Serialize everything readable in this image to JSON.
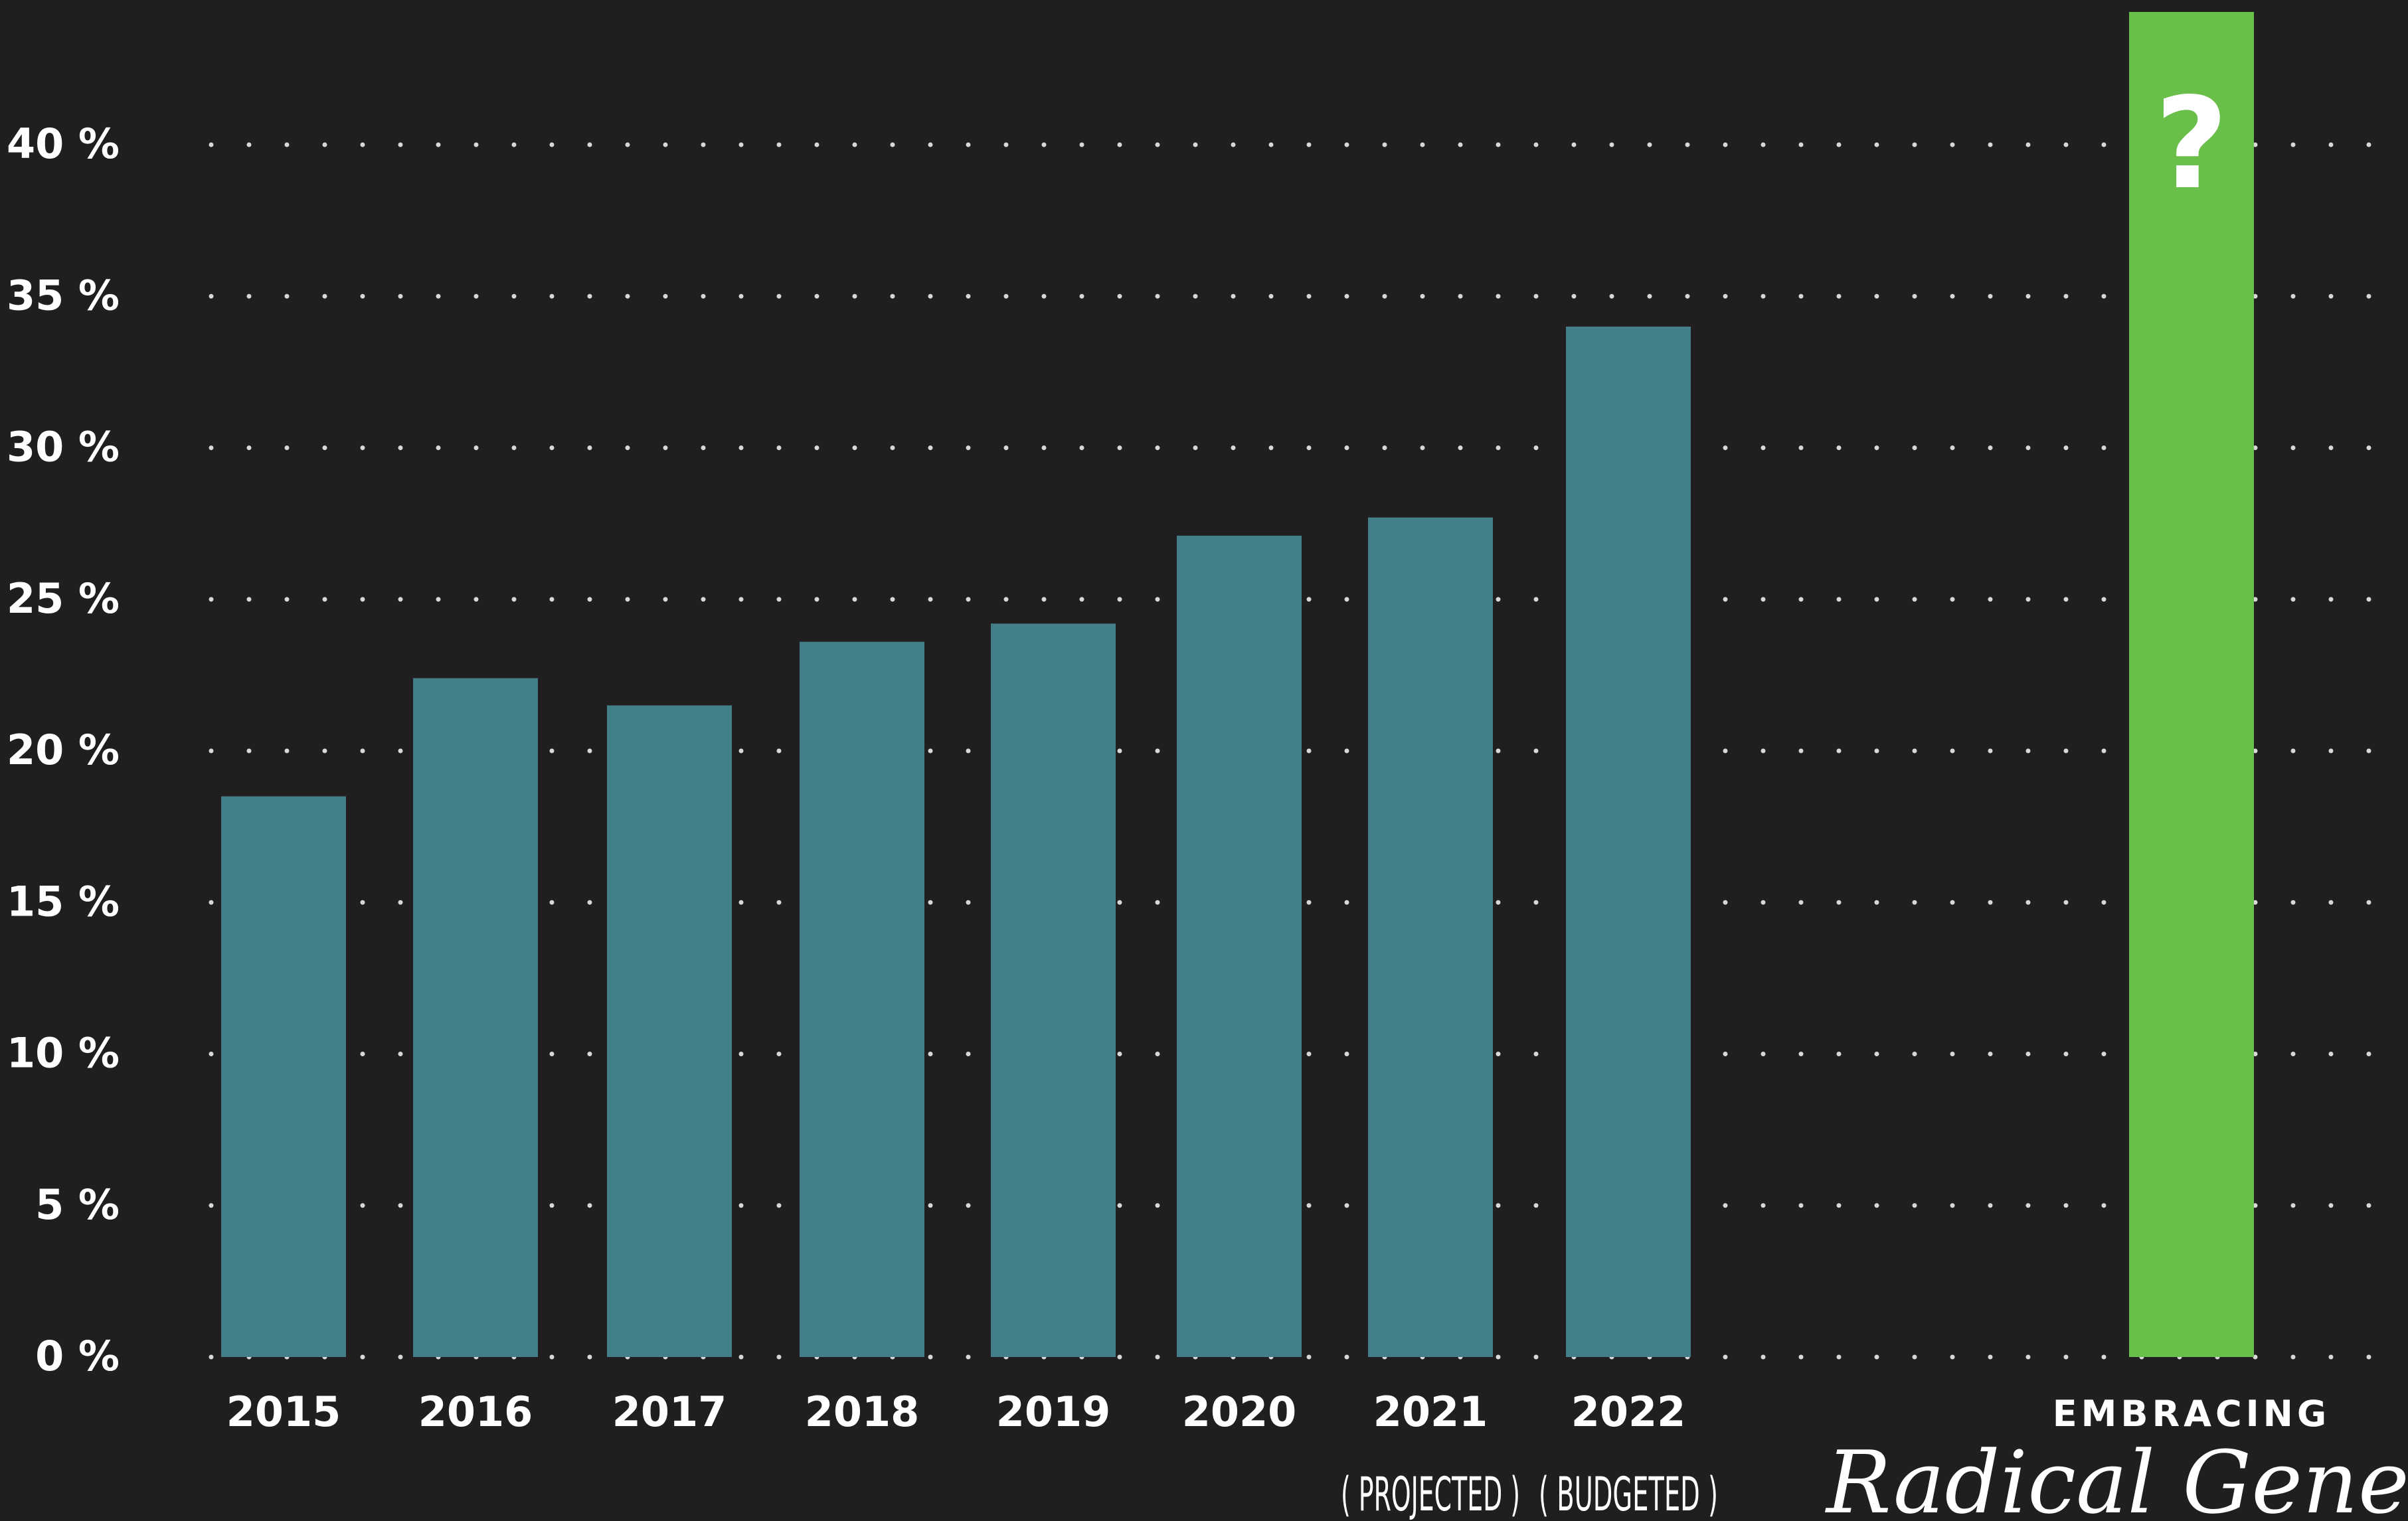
{
  "chart_data": {
    "type": "bar",
    "categories": [
      "2015",
      "2016",
      "2017",
      "2018",
      "2019",
      "2020",
      "2021",
      "2022"
    ],
    "category_notes": {
      "2021": "( PROJECTED )",
      "2022": "( BUDGETED )"
    },
    "values": [
      18.5,
      22.4,
      21.5,
      23.6,
      24.2,
      27.1,
      27.7,
      34.0
    ],
    "bar_color": "#437f89",
    "ylim": [
      0,
      44
    ],
    "yticks": [
      0,
      5,
      10,
      15,
      20,
      25,
      30,
      35,
      40
    ],
    "ytick_labels": [
      "0 %",
      "5 %",
      "10 %",
      "15 %",
      "20 %",
      "25 %",
      "30 %",
      "35 %",
      "40 %"
    ],
    "grid": "dotted horizontal",
    "highlight": {
      "label": "EMBRACING",
      "sublabel": "Radical Generosity",
      "marker": "?",
      "color": "#6abf4b"
    },
    "title": "",
    "xlabel": "",
    "ylabel": ""
  }
}
